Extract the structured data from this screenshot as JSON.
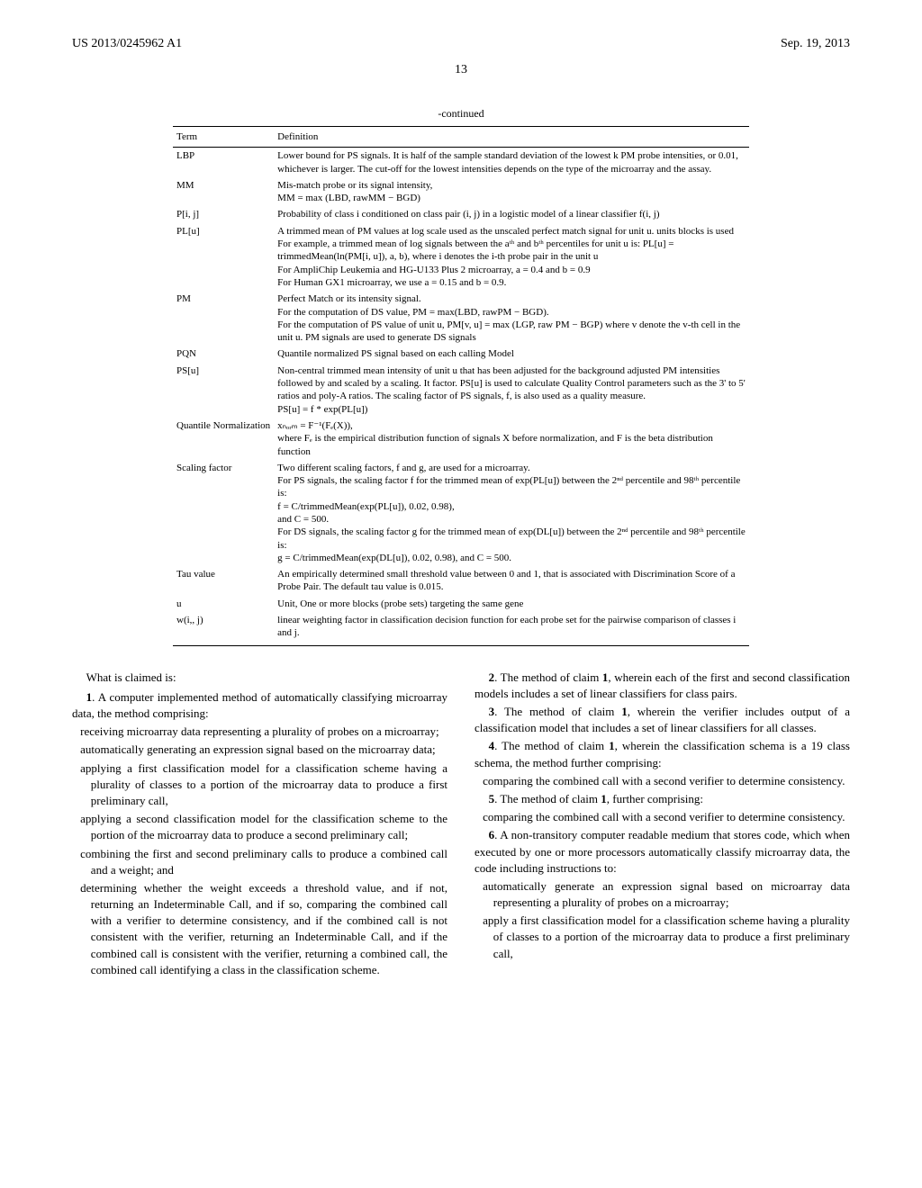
{
  "header": {
    "left": "US 2013/0245962 A1",
    "right": "Sep. 19, 2013"
  },
  "page_number": "13",
  "continued_label": "-continued",
  "table": {
    "head_term": "Term",
    "head_def": "Definition",
    "rows": [
      {
        "term": "LBP",
        "def": "Lower bound for PS signals. It is half of the sample standard deviation of the lowest k PM probe intensities, or 0.01, whichever is larger. The cut-off for the lowest intensities depends on the type of the microarray and the assay."
      },
      {
        "term": "MM",
        "def": "Mis-match probe or its signal intensity,\nMM = max (LBD, rawMM − BGD)"
      },
      {
        "term": "P[i, j]",
        "def": "Probability of class i conditioned on class pair (i, j) in a logistic model of a linear classifier f(i, j)"
      },
      {
        "term": "PL[u]",
        "def": "A trimmed mean of PM values at log scale used as the unscaled perfect match signal for unit u. units blocks is used For example, a trimmed mean of log signals between the aᵗʰ and bᵗʰ percentiles for unit u is: PL[u] = trimmedMean(ln(PM[i, u]), a, b), where i denotes the i-th probe pair in the unit u\nFor AmpliChip Leukemia and HG-U133 Plus 2 microarray, a = 0.4 and b = 0.9\nFor Human GX1 microarray, we use a = 0.15 and b = 0.9."
      },
      {
        "term": "PM",
        "def": "Perfect Match or its intensity signal.\nFor the computation of DS value, PM = max(LBD, rawPM − BGD).\nFor the computation of PS value of unit u, PM[v, u] = max (LGP, raw PM − BGP) where v denote the v-th cell in the unit u. PM signals are used to generate DS signals"
      },
      {
        "term": "PQN",
        "def": "Quantile normalized PS signal based on each calling Model"
      },
      {
        "term": "PS[u]",
        "def": "Non-central trimmed mean intensity of unit u that has been adjusted for the background adjusted PM intensities followed by and scaled by a scaling. It factor. PS[u] is used to calculate Quality Control parameters such as the 3' to 5' ratios and poly-A ratios. The scaling factor of PS signals, f, is also used as a quality measure.\nPS[u] = f * exp(PL[u])"
      },
      {
        "term": "Quantile Normalization",
        "def": "xₙₒᵣₘ = F⁻¹(Fₑ(X)),\nwhere Fₑ is the empirical distribution function of signals X before normalization, and F is the beta distribution function"
      },
      {
        "term": "Scaling factor",
        "def": "Two different scaling factors, f and g, are used for a microarray.\nFor PS signals, the scaling factor f for the trimmed mean of exp(PL[u]) between the 2ⁿᵈ percentile and 98ᵗʰ percentile is:\nf = C/trimmedMean(exp(PL[u]), 0.02, 0.98),\nand C = 500.\nFor DS signals, the scaling factor g for the trimmed mean of exp(DL[u]) between the 2ⁿᵈ percentile and 98ᵗʰ percentile is:\ng = C/trimmedMean(exp(DL[u]), 0.02, 0.98), and C = 500."
      },
      {
        "term": "Tau value",
        "def": "An empirically determined small threshold value between 0 and 1, that is associated with Discrimination Score of a Probe Pair. The default tau value is 0.015."
      },
      {
        "term": "u",
        "def": "Unit, One or more blocks (probe sets) targeting the same gene"
      },
      {
        "term": "w(i,, j)",
        "def": "linear weighting factor in classification decision function for each probe set for the pairwise comparison of classes i and j."
      }
    ]
  },
  "claims_intro": "What is claimed is:",
  "left_column": [
    {
      "type": "num",
      "text": "1. A computer implemented method of automatically classifying microarray data, the method comprising:"
    },
    {
      "type": "body",
      "text": "receiving microarray data representing a plurality of probes on a microarray;"
    },
    {
      "type": "body",
      "text": "automatically generating an expression signal based on the microarray data;"
    },
    {
      "type": "body",
      "text": "applying a first classification model for a classification scheme having a plurality of classes to a portion of the microarray data to produce a first preliminary call,"
    },
    {
      "type": "body",
      "text": "applying a second classification model for the classification scheme to the portion of the microarray data to produce a second preliminary call;"
    },
    {
      "type": "body",
      "text": "combining the first and second preliminary calls to produce a combined call and a weight; and"
    },
    {
      "type": "body",
      "text": "determining whether the weight exceeds a threshold value, and if not, returning an Indeterminable Call, and if so, comparing the combined call with a verifier to determine consistency, and if the combined call is not consistent with the verifier, returning an Indeterminable Call, and if the combined call is consistent with the verifier, returning a combined call, the combined call identifying a class in the classification scheme."
    }
  ],
  "right_column": [
    {
      "type": "num",
      "text": "2. The method of claim 1, wherein each of the first and second classification models includes a set of linear classifiers for class pairs."
    },
    {
      "type": "num",
      "text": "3. The method of claim 1, wherein the verifier includes output of a classification model that includes a set of linear classifiers for all classes."
    },
    {
      "type": "num",
      "text": "4. The method of claim 1, wherein the classification schema is a 19 class schema, the method further comprising:"
    },
    {
      "type": "body",
      "text": "comparing the combined call with a second verifier to determine consistency."
    },
    {
      "type": "num",
      "text": "5. The method of claim 1, further comprising:"
    },
    {
      "type": "body",
      "text": "comparing the combined call with a second verifier to determine consistency."
    },
    {
      "type": "num",
      "text": "6. A non-transitory computer readable medium that stores code, which when executed by one or more processors automatically classify microarray data, the code including instructions to:"
    },
    {
      "type": "body",
      "text": "automatically generate an expression signal based on microarray data representing a plurality of probes on a microarray;"
    },
    {
      "type": "body",
      "text": "apply a first classification model for a classification scheme having a plurality of classes to a portion of the microarray data to produce a first preliminary call,"
    }
  ]
}
